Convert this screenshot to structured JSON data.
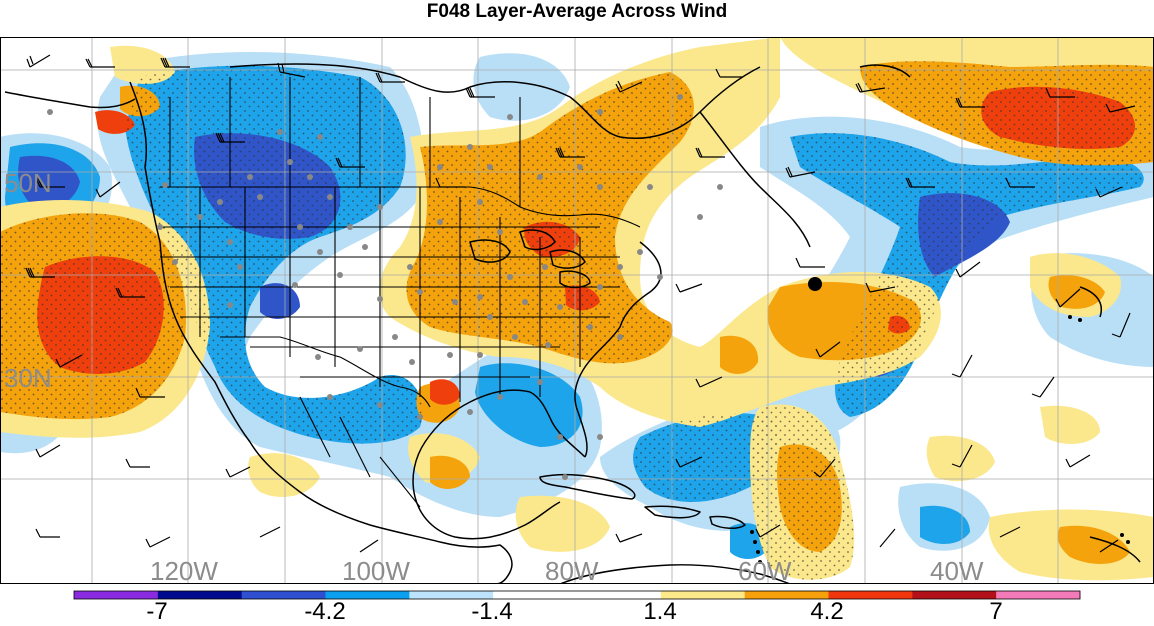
{
  "title": "F048 Layer-Average Across Wind",
  "map": {
    "lat_labels": [
      "50N",
      "30N"
    ],
    "lon_labels": [
      "120W",
      "100W",
      "80W",
      "60W",
      "40W"
    ]
  },
  "legend": {
    "tick_labels": [
      "-7",
      "-4.2",
      "-1.4",
      "1.4",
      "4.2",
      "7"
    ],
    "colors": [
      "#8a2be2",
      "#000a8c",
      "#2e4fd0",
      "#0aa0ef",
      "#bde2fb",
      "#ffffff",
      "#ffffff",
      "#fbe98a",
      "#f6a10c",
      "#f0360c",
      "#b3111a",
      "#f27ab9"
    ]
  },
  "palette": {
    "ocean": "#ffffff",
    "light_blue": "#b9dff7",
    "blue": "#1ea4ea",
    "dark_blue": "#2f55c8",
    "light_yellow": "#fbe88c",
    "orange": "#f5a30c",
    "red_orange": "#ee3f0d"
  }
}
